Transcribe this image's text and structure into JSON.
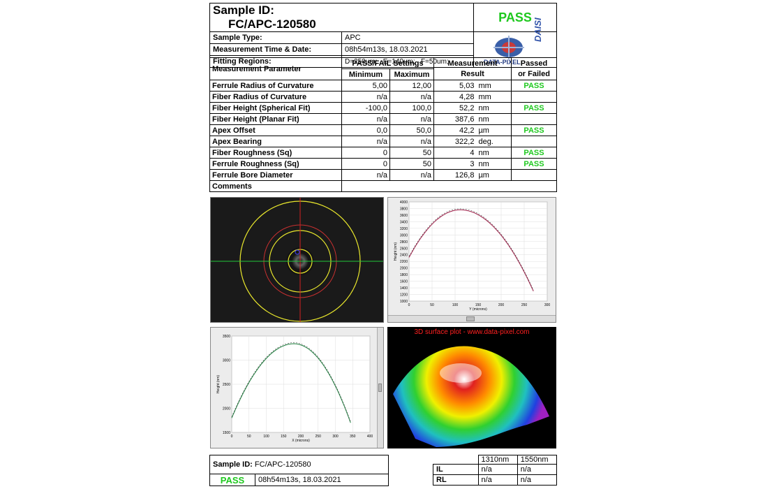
{
  "header": {
    "sample_id_label": "Sample ID:",
    "sample_id_value": "FC/APC-120580",
    "result": "PASS",
    "rows": [
      {
        "label": "Sample Type:",
        "value": "APC"
      },
      {
        "label": "Measurement Time & Date:",
        "value": "08h54m13s, 18.03.2021"
      },
      {
        "label": "Fitting Regions:",
        "value": "D=250um;   E=140um;   F=50um;"
      }
    ],
    "logo_text": "DATA-PIXEL",
    "logo_side": "DAISI"
  },
  "table": {
    "col_param": "Measurement Parameter",
    "col_settings": "PASS/FAIL Settings",
    "col_min": "Minimum",
    "col_max": "Maximum",
    "col_result_1": "Measurement",
    "col_result_2": "Result",
    "col_pf_1": "Passed",
    "col_pf_2": "or Failed",
    "rows": [
      {
        "name": "Ferrule Radius of Curvature",
        "min": "5,00",
        "max": "12,00",
        "result": "5,03",
        "unit": "mm",
        "status": "PASS"
      },
      {
        "name": "Fiber Radius of Curvature",
        "min": "n/a",
        "max": "n/a",
        "result": "4,28",
        "unit": "mm",
        "status": ""
      },
      {
        "name": "Fiber Height (Spherical Fit)",
        "min": "-100,0",
        "max": "100,0",
        "result": "52,2",
        "unit": "nm",
        "status": "PASS"
      },
      {
        "name": "Fiber Height (Planar Fit)",
        "min": "n/a",
        "max": "n/a",
        "result": "387,6",
        "unit": "nm",
        "status": ""
      },
      {
        "name": "Apex Offset",
        "min": "0,0",
        "max": "50,0",
        "result": "42,2",
        "unit": "µm",
        "status": "PASS"
      },
      {
        "name": "Apex Bearing",
        "min": "n/a",
        "max": "n/a",
        "result": "322,2",
        "unit": "deg.",
        "status": ""
      },
      {
        "name": "Fiber Roughness (Sq)",
        "min": "0",
        "max": "50",
        "result": "4",
        "unit": "nm",
        "status": "PASS"
      },
      {
        "name": "Ferrule Roughness (Sq)",
        "min": "0",
        "max": "50",
        "result": "3",
        "unit": "nm",
        "status": "PASS"
      },
      {
        "name": "Ferrule Bore Diameter",
        "min": "n/a",
        "max": "n/a",
        "result": "126,8",
        "unit": "µm",
        "status": ""
      }
    ],
    "comments_label": "Comments"
  },
  "plots": {
    "y_profile": {
      "ylabel": "Height (nm)",
      "xlabel": "Y (microns)",
      "yticks": [
        "4000",
        "3800",
        "3600",
        "3400",
        "3200",
        "3000",
        "2800",
        "2600",
        "2400",
        "2200",
        "2000",
        "1800",
        "1600",
        "1400",
        "1200",
        "1000"
      ],
      "xticks": [
        "0",
        "50",
        "100",
        "150",
        "200",
        "250",
        "300"
      ]
    },
    "x_profile": {
      "ylabel": "Height (nm)",
      "xlabel": "X (microns)",
      "yticks": [
        "3500",
        "3000",
        "2500",
        "2000",
        "1500"
      ],
      "xticks": [
        "0",
        "50",
        "100",
        "150",
        "200",
        "250",
        "300",
        "350",
        "400"
      ]
    },
    "surface_title": "3D surface plot - www.data-pixel.com"
  },
  "footer": {
    "sample_id_label": "Sample ID:",
    "sample_id_value": "FC/APC-120580",
    "result": "PASS",
    "datetime": "08h54m13s, 18.03.2021",
    "wl_1": "1310nm",
    "wl_2": "1550nm",
    "il_label": "IL",
    "rl_label": "RL",
    "il_1": "n/a",
    "il_2": "n/a",
    "rl_1": "n/a",
    "rl_2": "n/a"
  }
}
